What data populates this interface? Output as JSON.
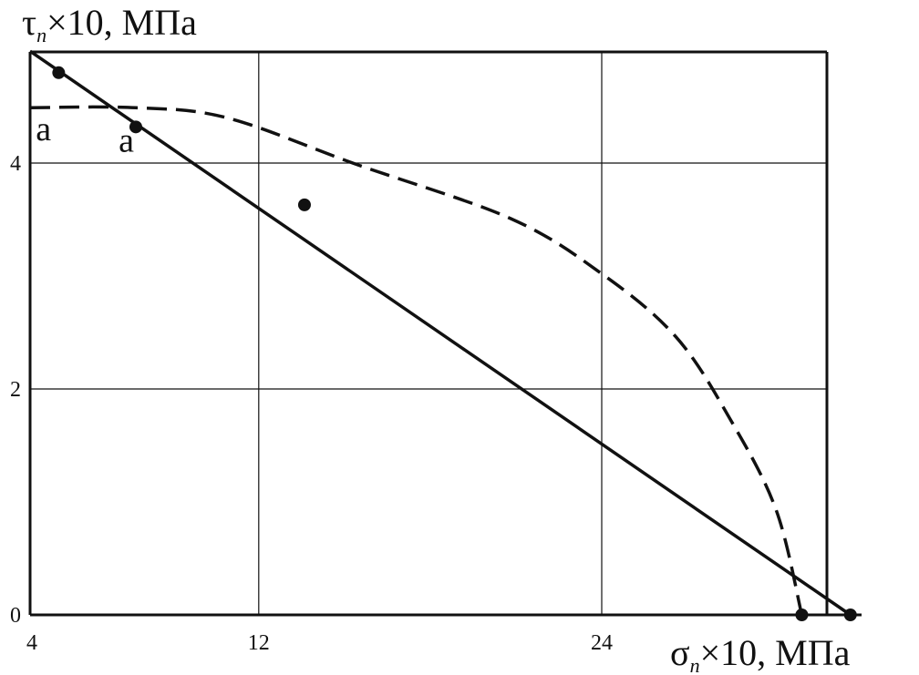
{
  "chart_data": {
    "type": "line",
    "title": "",
    "xlabel": {
      "symbol": "σ",
      "sub": "n",
      "rest": "×10, МПа"
    },
    "ylabel": {
      "symbol": "τ",
      "sub": "n",
      "rest": "×10, МПа"
    },
    "xlim": [
      4,
      32
    ],
    "ylim": [
      0,
      5
    ],
    "xticks": [
      4,
      12,
      24
    ],
    "yticks": [
      0,
      2,
      4
    ],
    "grid": true,
    "series": [
      {
        "style": "solid",
        "x": [
          4,
          32.7
        ],
        "y": [
          4.99,
          0
        ]
      },
      {
        "style": "dashed",
        "x": [
          4,
          7.7,
          10.9,
          15.4,
          20.8,
          24,
          26.6,
          28.5,
          30.1,
          31.0
        ],
        "y": [
          4.49,
          4.49,
          4.4,
          3.99,
          3.51,
          3.02,
          2.46,
          1.73,
          0.93,
          0
        ]
      }
    ],
    "points": {
      "x": [
        5.0,
        7.7,
        13.6,
        31.0,
        32.7
      ],
      "y": [
        4.8,
        4.32,
        3.63,
        0,
        0
      ]
    },
    "annotations": [
      {
        "text": "a",
        "x": 4.2,
        "y": 4.2
      },
      {
        "text": "a",
        "x": 7.1,
        "y": 4.1
      }
    ],
    "colors": {
      "ink": "#111111"
    }
  }
}
